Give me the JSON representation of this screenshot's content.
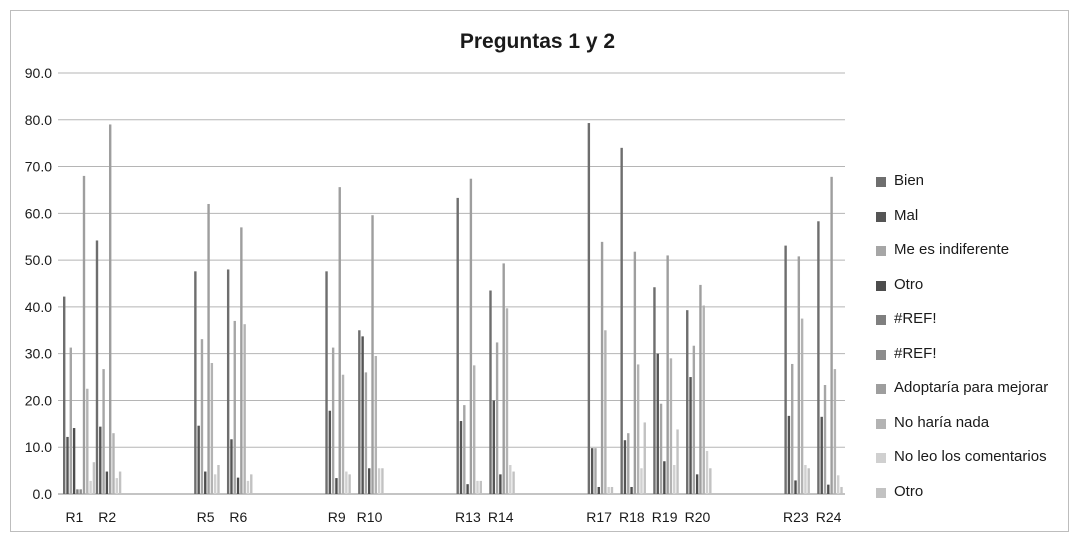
{
  "chart_data": {
    "type": "bar",
    "title": "Preguntas 1 y 2",
    "xlabel": "",
    "ylabel": "",
    "ylim": [
      0,
      90
    ],
    "yticks": [
      "0.0",
      "10.0",
      "20.0",
      "30.0",
      "40.0",
      "50.0",
      "60.0",
      "70.0",
      "80.0",
      "90.0"
    ],
    "grid": true,
    "legend_position": "right",
    "categories": [
      "R1",
      "R2",
      "",
      "",
      "R5",
      "R6",
      "",
      "",
      "R9",
      "R10",
      "",
      "",
      "R13",
      "R14",
      "",
      "",
      "R17",
      "R18",
      "R19",
      "R20",
      "",
      "",
      "R23",
      "R24"
    ],
    "series": [
      {
        "name": " Bien",
        "color": "#6e6e6e",
        "values": [
          42.2,
          null,
          null,
          null,
          47.6,
          null,
          null,
          null,
          47.6,
          null,
          null,
          null,
          63.3,
          null,
          null,
          null,
          79.3,
          null,
          null,
          null,
          null,
          null,
          53.1,
          null
        ]
      },
      {
        "name": "Mal",
        "color": "#555555",
        "values": [
          12.2,
          null,
          null,
          null,
          14.6,
          null,
          null,
          null,
          17.8,
          null,
          null,
          null,
          15.6,
          null,
          null,
          null,
          9.8,
          null,
          null,
          null,
          null,
          null,
          16.7,
          null
        ]
      },
      {
        "name": "Me es indiferente",
        "color": "#a6a6a6",
        "values": [
          31.3,
          null,
          null,
          null,
          33.1,
          null,
          null,
          null,
          31.3,
          null,
          null,
          null,
          19.0,
          null,
          null,
          null,
          9.8,
          null,
          null,
          null,
          null,
          null,
          27.8,
          null
        ]
      },
      {
        "name": "Otro",
        "color": "#4d4d4d",
        "values": [
          14.1,
          null,
          null,
          null,
          4.8,
          null,
          null,
          null,
          3.4,
          null,
          null,
          null,
          2.1,
          null,
          null,
          null,
          1.5,
          null,
          null,
          null,
          null,
          null,
          2.9,
          null
        ]
      },
      {
        "name": "#REF!",
        "color": "#7f7f7f",
        "values": [
          1.0,
          null,
          null,
          null,
          null,
          null,
          null,
          null,
          null,
          null,
          null,
          null,
          null,
          null,
          null,
          null,
          null,
          null,
          null,
          null,
          null,
          null,
          null,
          null
        ]
      },
      {
        "name": "#REF!",
        "color": "#8c8c8c",
        "values": [
          1.0,
          null,
          null,
          null,
          null,
          null,
          null,
          null,
          null,
          null,
          null,
          null,
          null,
          null,
          null,
          null,
          null,
          null,
          null,
          null,
          null,
          null,
          null,
          null
        ]
      },
      {
        "name": "Adoptaría para mejorar",
        "color": "#9e9e9e",
        "values": [
          68.0,
          null,
          null,
          null,
          62.0,
          null,
          null,
          null,
          65.6,
          null,
          null,
          null,
          67.4,
          null,
          null,
          null,
          53.9,
          null,
          null,
          null,
          null,
          null,
          50.8,
          null
        ]
      },
      {
        "name": "No haría nada",
        "color": "#b3b3b3",
        "values": [
          22.5,
          null,
          null,
          null,
          28.0,
          null,
          null,
          null,
          25.5,
          null,
          null,
          null,
          27.5,
          null,
          null,
          null,
          35.0,
          null,
          null,
          null,
          null,
          null,
          37.5,
          null
        ]
      },
      {
        "name": "No leo los comentarios",
        "color": "#d0d0d0",
        "values": [
          2.8,
          null,
          null,
          null,
          4.2,
          null,
          null,
          null,
          4.8,
          null,
          null,
          null,
          2.8,
          null,
          null,
          null,
          1.5,
          null,
          null,
          null,
          null,
          null,
          6.2,
          null
        ]
      },
      {
        "name": "Otro",
        "color": "#c2c2c2",
        "values": [
          6.8,
          null,
          null,
          null,
          6.2,
          null,
          null,
          null,
          4.2,
          null,
          null,
          null,
          2.8,
          null,
          null,
          null,
          1.5,
          null,
          null,
          null,
          null,
          null,
          5.5,
          null
        ]
      }
    ],
    "extra_bars_note": "",
    "groups": [
      {
        "label": "R2",
        "bars": [
          [
            54.2,
            "#6e6e6e"
          ],
          [
            14.4,
            "#555555"
          ],
          [
            26.7,
            "#a6a6a6"
          ],
          [
            4.8,
            "#4d4d4d"
          ],
          [
            79.0,
            "#9e9e9e"
          ],
          [
            13.0,
            "#b3b3b3"
          ],
          [
            3.4,
            "#d0d0d0"
          ],
          [
            4.8,
            "#c2c2c2"
          ]
        ]
      },
      {
        "label": "R6",
        "bars": [
          [
            48.0,
            "#6e6e6e"
          ],
          [
            11.7,
            "#555555"
          ],
          [
            37.0,
            "#a6a6a6"
          ],
          [
            3.5,
            "#4d4d4d"
          ],
          [
            57.0,
            "#9e9e9e"
          ],
          [
            36.3,
            "#b3b3b3"
          ],
          [
            2.8,
            "#d0d0d0"
          ],
          [
            4.2,
            "#c2c2c2"
          ]
        ]
      },
      {
        "label": "R10",
        "bars": [
          [
            35.0,
            "#6e6e6e"
          ],
          [
            33.7,
            "#555555"
          ],
          [
            26.0,
            "#a6a6a6"
          ],
          [
            5.5,
            "#4d4d4d"
          ],
          [
            59.6,
            "#9e9e9e"
          ],
          [
            29.5,
            "#b3b3b3"
          ],
          [
            5.5,
            "#d0d0d0"
          ],
          [
            5.5,
            "#c2c2c2"
          ]
        ]
      },
      {
        "label": "R14",
        "bars": [
          [
            43.5,
            "#6e6e6e"
          ],
          [
            20.0,
            "#555555"
          ],
          [
            32.4,
            "#a6a6a6"
          ],
          [
            4.2,
            "#4d4d4d"
          ],
          [
            49.3,
            "#9e9e9e"
          ],
          [
            39.7,
            "#b3b3b3"
          ],
          [
            6.2,
            "#d0d0d0"
          ],
          [
            4.8,
            "#c2c2c2"
          ]
        ]
      },
      {
        "label": "R18",
        "bars": [
          [
            74.0,
            "#6e6e6e"
          ],
          [
            11.5,
            "#555555"
          ],
          [
            13.0,
            "#a6a6a6"
          ],
          [
            1.5,
            "#4d4d4d"
          ],
          [
            51.8,
            "#9e9e9e"
          ],
          [
            27.7,
            "#b3b3b3"
          ],
          [
            5.5,
            "#d0d0d0"
          ],
          [
            15.3,
            "#c2c2c2"
          ]
        ]
      },
      {
        "label": "R19",
        "bars": [
          [
            44.2,
            "#6e6e6e"
          ],
          [
            30.0,
            "#555555"
          ],
          [
            19.3,
            "#a6a6a6"
          ],
          [
            7.0,
            "#4d4d4d"
          ],
          [
            51.0,
            "#9e9e9e"
          ],
          [
            29.0,
            "#b3b3b3"
          ],
          [
            6.2,
            "#d0d0d0"
          ],
          [
            13.8,
            "#c2c2c2"
          ]
        ]
      },
      {
        "label": "R20",
        "bars": [
          [
            39.3,
            "#6e6e6e"
          ],
          [
            25.0,
            "#555555"
          ],
          [
            31.7,
            "#a6a6a6"
          ],
          [
            4.2,
            "#4d4d4d"
          ],
          [
            44.7,
            "#9e9e9e"
          ],
          [
            40.3,
            "#b3b3b3"
          ],
          [
            9.2,
            "#d0d0d0"
          ],
          [
            5.5,
            "#c2c2c2"
          ]
        ]
      },
      {
        "label": "R24",
        "bars": [
          [
            58.3,
            "#6e6e6e"
          ],
          [
            16.5,
            "#555555"
          ],
          [
            23.3,
            "#a6a6a6"
          ],
          [
            2.0,
            "#4d4d4d"
          ],
          [
            67.8,
            "#9e9e9e"
          ],
          [
            26.7,
            "#b3b3b3"
          ],
          [
            4.0,
            "#d0d0d0"
          ],
          [
            1.5,
            "#c2c2c2"
          ]
        ]
      }
    ]
  }
}
